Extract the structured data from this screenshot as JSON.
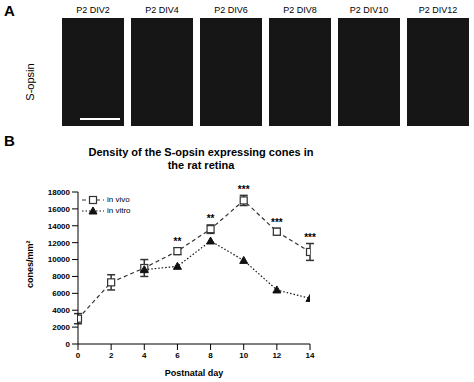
{
  "panel_labels": [
    "A",
    "B"
  ],
  "panel_a": {
    "row_label": "S-opsin",
    "images": [
      "P2 DIV2",
      "P2 DIV4",
      "P2 DIV6",
      "P2 DIV8",
      "P2 DIV10",
      "P2 DIV12"
    ]
  },
  "chart_data": {
    "type": "line",
    "title": "Density of the S-opsin expressing cones in the rat retina",
    "x_label": "Postnatal day",
    "y_label": "cones/mm²",
    "x": [
      0,
      2,
      4,
      6,
      8,
      10,
      12,
      14
    ],
    "series": [
      {
        "name": "in vivo",
        "color": "#333333",
        "marker": "square",
        "line_style": "dashed",
        "values": [
          3000,
          7300,
          9000,
          11000,
          13600,
          17000,
          13300,
          10900
        ],
        "errors": [
          600,
          900,
          1000,
          400,
          500,
          600,
          400,
          1000
        ]
      },
      {
        "name": "in vitro",
        "color": "#111111",
        "marker": "triangle",
        "line_style": "dotted",
        "values": [
          null,
          null,
          8800,
          9200,
          12200,
          9900,
          6400,
          5400
        ]
      }
    ],
    "xlim": [
      0,
      14
    ],
    "xticks": [
      0,
      2,
      4,
      6,
      8,
      10,
      12,
      14
    ],
    "ylim": [
      0,
      18000
    ],
    "yticks": [
      0,
      2000,
      4000,
      6000,
      8000,
      10000,
      12000,
      14000,
      16000,
      18000
    ],
    "legend": "upper left",
    "annotations": [
      {
        "x": 6,
        "y": 11700,
        "text": "**"
      },
      {
        "x": 8,
        "y": 14400,
        "text": "**"
      },
      {
        "x": 10,
        "y": 17900,
        "text": "***"
      },
      {
        "x": 12,
        "y": 14000,
        "text": "***"
      },
      {
        "x": 14,
        "y": 12200,
        "text": "***"
      }
    ]
  }
}
